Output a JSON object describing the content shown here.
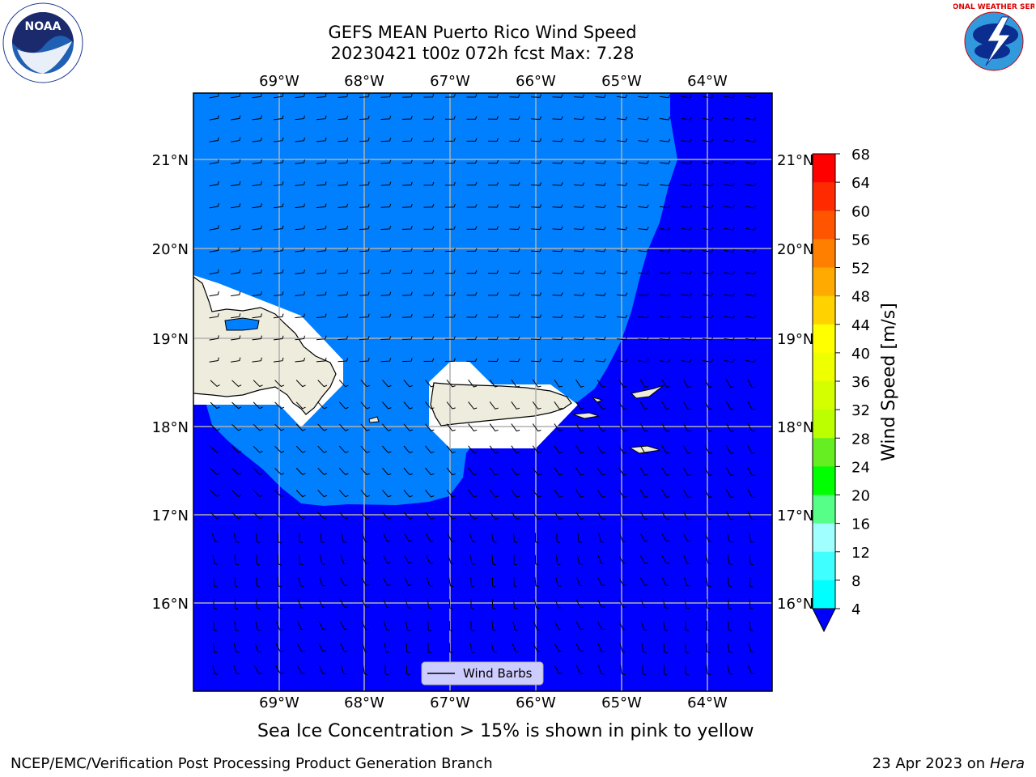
{
  "title": {
    "line1": "GEFS MEAN Puerto Rico Wind Speed",
    "line2": "20230421 t00z 072h fcst   Max: 7.28"
  },
  "map": {
    "lon_ticks_top": [
      "69°W",
      "68°W",
      "67°W",
      "66°W",
      "65°W",
      "64°W"
    ],
    "lon_ticks_bottom": [
      "69°W",
      "68°W",
      "67°W",
      "66°W",
      "65°W",
      "64°W"
    ],
    "lat_ticks_left": [
      "21°N",
      "20°N",
      "19°N",
      "18°N",
      "17°N",
      "16°N"
    ],
    "lat_ticks_right": [
      "21°N",
      "20°N",
      "19°N",
      "18°N",
      "17°N",
      "16°N"
    ],
    "lon_values": [
      -69,
      -68,
      -67,
      -66,
      -65,
      -64
    ],
    "lat_values": [
      21,
      20,
      19,
      18,
      17,
      16
    ],
    "extent": {
      "lon_min": -70,
      "lon_max": -63.25,
      "lat_min": 15,
      "lat_max": 21.75
    },
    "legend_label": "Wind Barbs",
    "colors": {
      "band_4_8": "#0080ff",
      "band_below_4": "#0000ff",
      "land": "#eeecdc"
    }
  },
  "colorbar": {
    "label": "Wind Speed [m/s]",
    "ticks": [
      "68",
      "64",
      "60",
      "56",
      "52",
      "48",
      "44",
      "40",
      "36",
      "32",
      "28",
      "24",
      "20",
      "16",
      "12",
      "8",
      "4"
    ],
    "colors": [
      "#ff0000",
      "#ff2a00",
      "#ff5500",
      "#ff8000",
      "#ffaa00",
      "#ffd200",
      "#ffff00",
      "#eeff00",
      "#d4ff00",
      "#bbff00",
      "#66ee22",
      "#00ff00",
      "#55ff88",
      "#a0ffff",
      "#40ffff",
      "#00ffff",
      "#0080ff"
    ],
    "extend_color": "#0000ff"
  },
  "footer": {
    "note": "Sea Ice Concentration > 15% is shown in pink to yellow",
    "credit": "NCEP/EMC/Verification Post Processing Product Generation Branch",
    "date": "23 Apr 2023 on",
    "machine": "Hera"
  },
  "logos": {
    "noaa_text": "NOAA",
    "nws_text": "NATIONAL WEATHER SERVICE"
  }
}
